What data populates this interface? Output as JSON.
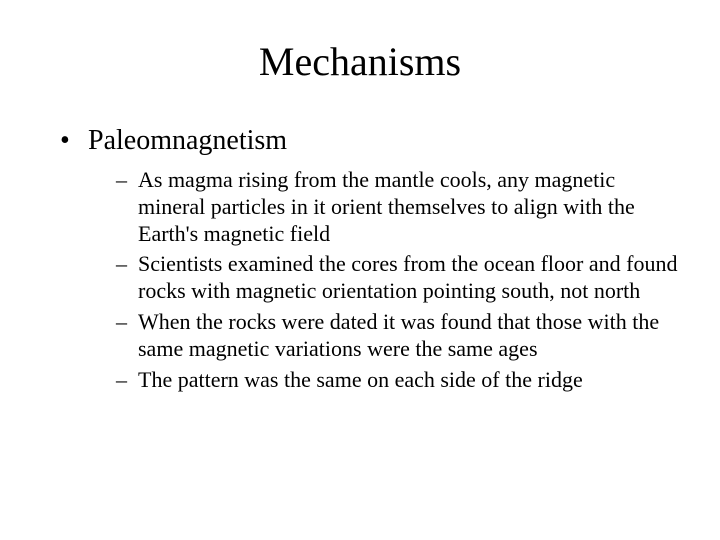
{
  "title": "Mechanisms",
  "bullet1": "Paleomnagnetism",
  "sub1": "As magma rising from the mantle cools, any magnetic mineral particles in it orient themselves to align with the Earth's magnetic field",
  "sub2": "Scientists examined the cores from the ocean floor and found rocks with magnetic orientation pointing south, not north",
  "sub3": "When the rocks were dated it was found that those with the same magnetic variations were the same ages",
  "sub4": "The pattern was the same on each side of the ridge"
}
